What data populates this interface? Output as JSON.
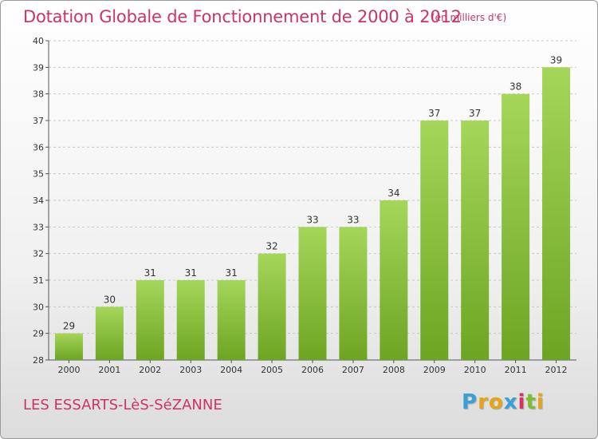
{
  "header": {
    "title": "Dotation Globale de Fonctionnement de 2000 à 2012",
    "subtitle": "(en milliers d'€)"
  },
  "footer": {
    "location": "LES ESSARTS-LèS-SéZANNE",
    "brand_letters": [
      "P",
      "r",
      "o",
      "x",
      "i",
      "t",
      "i"
    ],
    "brand_colors": [
      "#3aa0d8",
      "#e8a317",
      "#e8a317",
      "#3aa0d8",
      "#d8325e",
      "#7cbf2a",
      "#e8a317"
    ]
  },
  "colors": {
    "bar_light": "#a5d65a",
    "bar_dark": "#6da522",
    "grid": "#c8c8c8",
    "axis": "#555555",
    "accent": "#cc3366"
  },
  "chart_data": {
    "type": "bar",
    "title": "Dotation Globale de Fonctionnement de 2000 à 2012",
    "xlabel": "",
    "ylabel": "en milliers d'€",
    "categories": [
      "2000",
      "2001",
      "2002",
      "2003",
      "2004",
      "2005",
      "2006",
      "2007",
      "2008",
      "2009",
      "2010",
      "2011",
      "2012"
    ],
    "values": [
      29,
      30,
      31,
      31,
      31,
      32,
      33,
      33,
      34,
      37,
      37,
      38,
      39
    ],
    "ylim": [
      28,
      40
    ],
    "yticks": [
      28,
      29,
      30,
      31,
      32,
      33,
      34,
      35,
      36,
      37,
      38,
      39,
      40
    ],
    "grid": "horizontal dashed",
    "legend": "none"
  }
}
